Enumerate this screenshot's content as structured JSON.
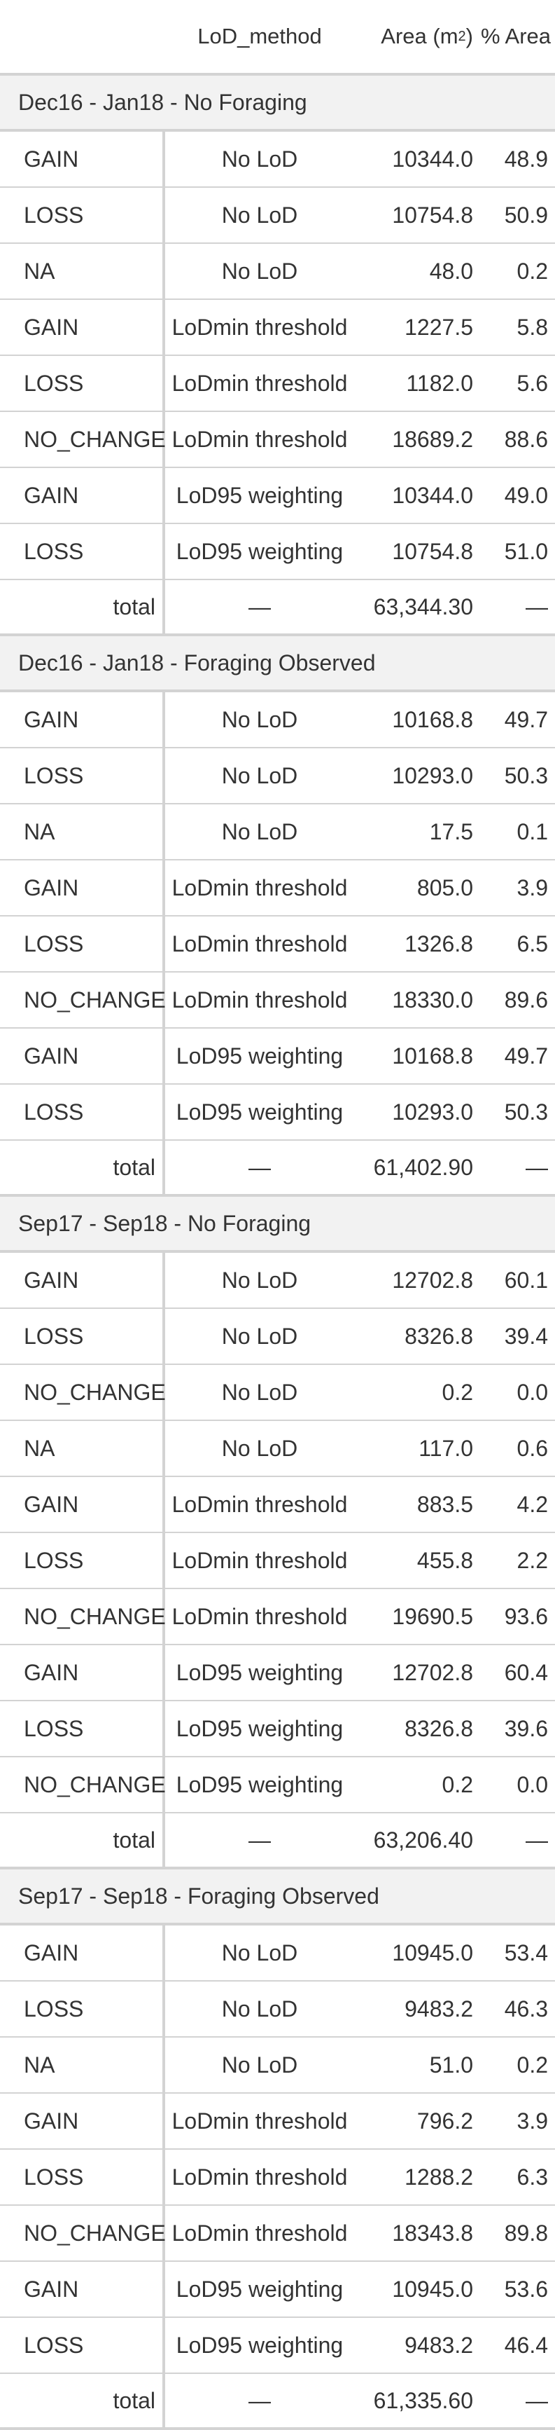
{
  "header": {
    "col_method": "LoD_method",
    "col_area_prefix": "Area (m",
    "col_area_sup": "2",
    "col_area_suffix": ")",
    "col_pct": "% Area"
  },
  "groups": [
    {
      "title": "Dec16 - Jan18 - No Foraging",
      "rows": [
        {
          "label": "GAIN",
          "method": "No LoD",
          "area": "10344.0",
          "pct": "48.9"
        },
        {
          "label": "LOSS",
          "method": "No LoD",
          "area": "10754.8",
          "pct": "50.9"
        },
        {
          "label": "NA",
          "method": "No LoD",
          "area": "48.0",
          "pct": "0.2"
        },
        {
          "label": "GAIN",
          "method": "LoDmin threshold",
          "area": "1227.5",
          "pct": "5.8"
        },
        {
          "label": "LOSS",
          "method": "LoDmin threshold",
          "area": "1182.0",
          "pct": "5.6"
        },
        {
          "label": "NO_CHANGE",
          "method": "LoDmin threshold",
          "area": "18689.2",
          "pct": "88.6"
        },
        {
          "label": "GAIN",
          "method": "LoD95 weighting",
          "area": "10344.0",
          "pct": "49.0"
        },
        {
          "label": "LOSS",
          "method": "LoD95 weighting",
          "area": "10754.8",
          "pct": "51.0"
        }
      ],
      "total": {
        "label": "total",
        "method": "—",
        "area": "63,344.30",
        "pct": "—"
      }
    },
    {
      "title": "Dec16 - Jan18 - Foraging Observed",
      "rows": [
        {
          "label": "GAIN",
          "method": "No LoD",
          "area": "10168.8",
          "pct": "49.7"
        },
        {
          "label": "LOSS",
          "method": "No LoD",
          "area": "10293.0",
          "pct": "50.3"
        },
        {
          "label": "NA",
          "method": "No LoD",
          "area": "17.5",
          "pct": "0.1"
        },
        {
          "label": "GAIN",
          "method": "LoDmin threshold",
          "area": "805.0",
          "pct": "3.9"
        },
        {
          "label": "LOSS",
          "method": "LoDmin threshold",
          "area": "1326.8",
          "pct": "6.5"
        },
        {
          "label": "NO_CHANGE",
          "method": "LoDmin threshold",
          "area": "18330.0",
          "pct": "89.6"
        },
        {
          "label": "GAIN",
          "method": "LoD95 weighting",
          "area": "10168.8",
          "pct": "49.7"
        },
        {
          "label": "LOSS",
          "method": "LoD95 weighting",
          "area": "10293.0",
          "pct": "50.3"
        }
      ],
      "total": {
        "label": "total",
        "method": "—",
        "area": "61,402.90",
        "pct": "—"
      }
    },
    {
      "title": "Sep17 - Sep18 - No Foraging",
      "rows": [
        {
          "label": "GAIN",
          "method": "No LoD",
          "area": "12702.8",
          "pct": "60.1"
        },
        {
          "label": "LOSS",
          "method": "No LoD",
          "area": "8326.8",
          "pct": "39.4"
        },
        {
          "label": "NO_CHANGE",
          "method": "No LoD",
          "area": "0.2",
          "pct": "0.0"
        },
        {
          "label": "NA",
          "method": "No LoD",
          "area": "117.0",
          "pct": "0.6"
        },
        {
          "label": "GAIN",
          "method": "LoDmin threshold",
          "area": "883.5",
          "pct": "4.2"
        },
        {
          "label": "LOSS",
          "method": "LoDmin threshold",
          "area": "455.8",
          "pct": "2.2"
        },
        {
          "label": "NO_CHANGE",
          "method": "LoDmin threshold",
          "area": "19690.5",
          "pct": "93.6"
        },
        {
          "label": "GAIN",
          "method": "LoD95 weighting",
          "area": "12702.8",
          "pct": "60.4"
        },
        {
          "label": "LOSS",
          "method": "LoD95 weighting",
          "area": "8326.8",
          "pct": "39.6"
        },
        {
          "label": "NO_CHANGE",
          "method": "LoD95 weighting",
          "area": "0.2",
          "pct": "0.0"
        }
      ],
      "total": {
        "label": "total",
        "method": "—",
        "area": "63,206.40",
        "pct": "—"
      }
    },
    {
      "title": "Sep17 - Sep18 - Foraging Observed",
      "rows": [
        {
          "label": "GAIN",
          "method": "No LoD",
          "area": "10945.0",
          "pct": "53.4"
        },
        {
          "label": "LOSS",
          "method": "No LoD",
          "area": "9483.2",
          "pct": "46.3"
        },
        {
          "label": "NA",
          "method": "No LoD",
          "area": "51.0",
          "pct": "0.2"
        },
        {
          "label": "GAIN",
          "method": "LoDmin threshold",
          "area": "796.2",
          "pct": "3.9"
        },
        {
          "label": "LOSS",
          "method": "LoDmin threshold",
          "area": "1288.2",
          "pct": "6.3"
        },
        {
          "label": "NO_CHANGE",
          "method": "LoDmin threshold",
          "area": "18343.8",
          "pct": "89.8"
        },
        {
          "label": "GAIN",
          "method": "LoD95 weighting",
          "area": "10945.0",
          "pct": "53.6"
        },
        {
          "label": "LOSS",
          "method": "LoD95 weighting",
          "area": "9483.2",
          "pct": "46.4"
        }
      ],
      "total": {
        "label": "total",
        "method": "—",
        "area": "61,335.60",
        "pct": "—"
      }
    }
  ]
}
